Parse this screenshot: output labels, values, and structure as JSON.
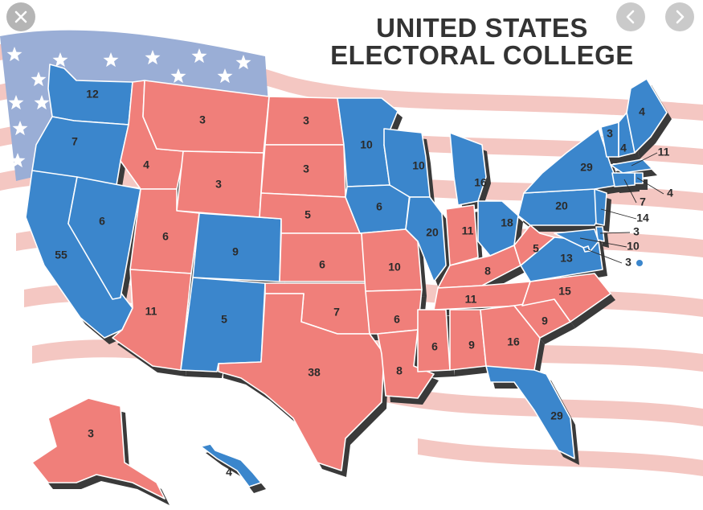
{
  "title": {
    "line1": "UNITED STATES",
    "line2": "ELECTORAL COLLEGE"
  },
  "colors": {
    "blue": "#3b86cc",
    "red": "#f07f7a",
    "flag_blue": "#9aaed6",
    "flag_red": "#f4c7c2",
    "shadow": "#3a3a3a"
  },
  "controls": {
    "close": "close-icon",
    "prev": "chevron-left-icon",
    "next": "chevron-right-icon"
  },
  "map_data": {
    "states": {
      "WA": {
        "votes": "12",
        "party": "blue"
      },
      "OR": {
        "votes": "7",
        "party": "blue"
      },
      "CA": {
        "votes": "55",
        "party": "blue"
      },
      "NV": {
        "votes": "6",
        "party": "blue"
      },
      "ID": {
        "votes": "4",
        "party": "red"
      },
      "MT": {
        "votes": "3",
        "party": "red"
      },
      "WY": {
        "votes": "3",
        "party": "red"
      },
      "UT": {
        "votes": "6",
        "party": "red"
      },
      "AZ": {
        "votes": "11",
        "party": "red"
      },
      "CO": {
        "votes": "9",
        "party": "blue"
      },
      "NM": {
        "votes": "5",
        "party": "blue"
      },
      "ND": {
        "votes": "3",
        "party": "red"
      },
      "SD": {
        "votes": "3",
        "party": "red"
      },
      "NE": {
        "votes": "5",
        "party": "red"
      },
      "KS": {
        "votes": "6",
        "party": "red"
      },
      "OK": {
        "votes": "7",
        "party": "red"
      },
      "TX": {
        "votes": "38",
        "party": "red"
      },
      "MN": {
        "votes": "10",
        "party": "blue"
      },
      "IA": {
        "votes": "6",
        "party": "blue"
      },
      "MO": {
        "votes": "10",
        "party": "red"
      },
      "AR": {
        "votes": "6",
        "party": "red"
      },
      "LA": {
        "votes": "8",
        "party": "red"
      },
      "WI": {
        "votes": "10",
        "party": "blue"
      },
      "IL": {
        "votes": "20",
        "party": "blue"
      },
      "MI": {
        "votes": "16",
        "party": "blue"
      },
      "IN": {
        "votes": "11",
        "party": "red"
      },
      "OH": {
        "votes": "18",
        "party": "blue"
      },
      "KY": {
        "votes": "8",
        "party": "red"
      },
      "TN": {
        "votes": "11",
        "party": "red"
      },
      "MS": {
        "votes": "6",
        "party": "red"
      },
      "AL": {
        "votes": "9",
        "party": "red"
      },
      "GA": {
        "votes": "16",
        "party": "red"
      },
      "FL": {
        "votes": "29",
        "party": "blue"
      },
      "SC": {
        "votes": "9",
        "party": "red"
      },
      "NC": {
        "votes": "15",
        "party": "red"
      },
      "VA": {
        "votes": "13",
        "party": "blue"
      },
      "WV": {
        "votes": "5",
        "party": "red"
      },
      "PA": {
        "votes": "20",
        "party": "blue"
      },
      "NY": {
        "votes": "29",
        "party": "blue"
      },
      "VT": {
        "votes": "3",
        "party": "blue"
      },
      "NH": {
        "votes": "4",
        "party": "blue"
      },
      "ME": {
        "votes": "4",
        "party": "blue"
      },
      "MA": {
        "votes": "11",
        "party": "blue"
      },
      "RI": {
        "votes": "4",
        "party": "blue"
      },
      "CT": {
        "votes": "7",
        "party": "blue"
      },
      "NJ": {
        "votes": "14",
        "party": "blue"
      },
      "DE": {
        "votes": "3",
        "party": "blue"
      },
      "MD": {
        "votes": "10",
        "party": "blue"
      },
      "DC": {
        "votes": "3",
        "party": "blue"
      },
      "AK": {
        "votes": "3",
        "party": "red"
      },
      "HI": {
        "votes": "4",
        "party": "blue"
      }
    }
  }
}
